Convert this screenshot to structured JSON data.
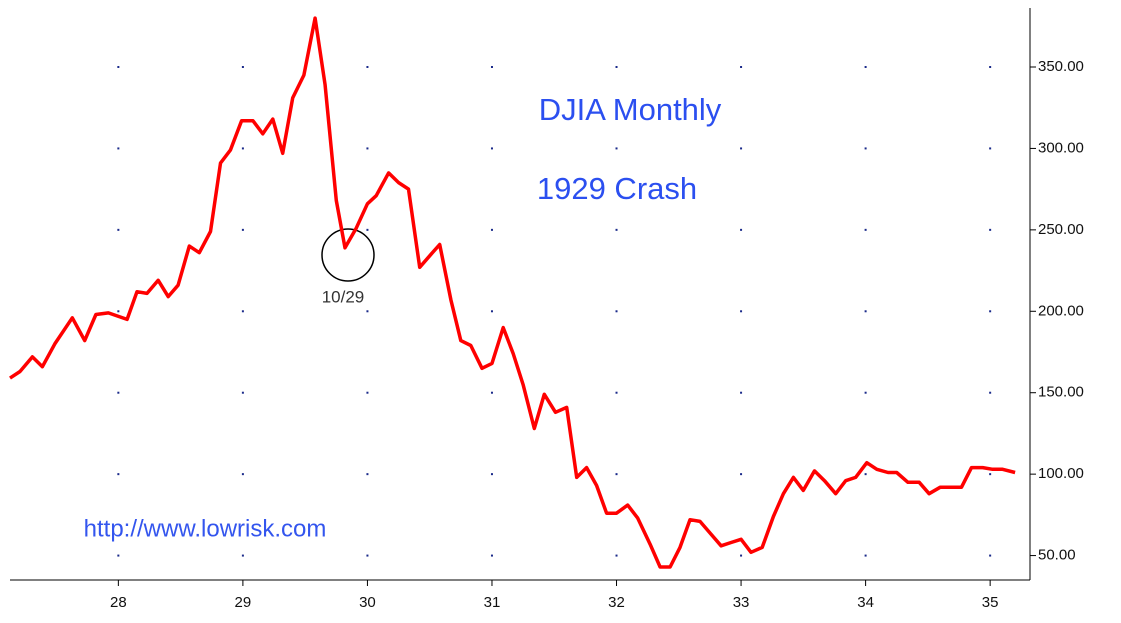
{
  "chart_data": {
    "type": "line",
    "title": "DJIA Monthly",
    "subtitle": "1929 Crash",
    "annotations": [
      "10/29",
      "http://www.lowrisk.com"
    ],
    "color": "#ff0000",
    "grid": true,
    "x": [
      27.13,
      27.21,
      27.31,
      27.39,
      27.49,
      27.63,
      27.73,
      27.82,
      27.92,
      28.07,
      28.15,
      28.23,
      28.32,
      28.4,
      28.48,
      28.57,
      28.65,
      28.74,
      28.82,
      28.9,
      28.99,
      29.08,
      29.16,
      29.24,
      29.32,
      29.4,
      29.49,
      29.58,
      29.66,
      29.75,
      29.82,
      29.91,
      30.0,
      30.07,
      30.17,
      30.25,
      30.33,
      30.42,
      30.51,
      30.58,
      30.67,
      30.75,
      30.83,
      30.92,
      31.0,
      31.09,
      31.17,
      31.25,
      31.34,
      31.42,
      31.51,
      31.6,
      31.68,
      31.76,
      31.84,
      31.92,
      32.0,
      32.09,
      32.17,
      32.27,
      32.35,
      32.43,
      32.51,
      32.59,
      32.67,
      32.76,
      32.84,
      32.92,
      33.0,
      33.08,
      33.17,
      33.26,
      33.34,
      33.42,
      33.5,
      33.59,
      33.67,
      33.76,
      33.84,
      33.92,
      34.01,
      34.09,
      34.18,
      34.25,
      34.34,
      34.43,
      34.51,
      34.6,
      34.68,
      34.77,
      34.85,
      34.94,
      35.02,
      35.1,
      35.2
    ],
    "values": [
      159,
      163,
      172,
      166,
      180,
      196,
      182,
      198,
      199,
      195,
      212,
      211,
      219,
      209,
      216,
      240,
      236,
      249,
      291,
      299,
      317,
      317,
      309,
      318,
      297,
      331,
      345,
      380,
      339,
      268,
      239,
      251,
      266,
      271,
      285,
      279,
      275,
      227,
      235,
      241,
      207,
      182,
      179,
      165,
      168,
      190,
      174,
      155,
      128,
      149,
      138,
      141,
      98,
      104,
      93,
      76,
      76,
      81,
      73,
      57,
      43,
      43,
      55,
      72,
      71,
      63,
      56,
      58,
      60,
      52,
      55,
      74,
      88,
      98,
      90,
      102,
      96,
      88,
      96,
      98,
      107,
      103,
      101,
      101,
      95,
      95,
      88,
      92,
      92,
      92,
      104,
      104,
      103,
      103,
      101
    ],
    "xlim": [
      27.13,
      35.32
    ],
    "ylim": [
      35,
      385
    ],
    "xticks": [
      28,
      29,
      30,
      31,
      32,
      33,
      34,
      35
    ],
    "yticks": [
      {
        "value": 50,
        "label": "50.00"
      },
      {
        "value": 100,
        "label": "100.00"
      },
      {
        "value": 150,
        "label": "150.00"
      },
      {
        "value": 200,
        "label": "200.00"
      },
      {
        "value": 250,
        "label": "250.00"
      },
      {
        "value": 300,
        "label": "300.00"
      },
      {
        "value": 350,
        "label": "350.00"
      }
    ]
  }
}
